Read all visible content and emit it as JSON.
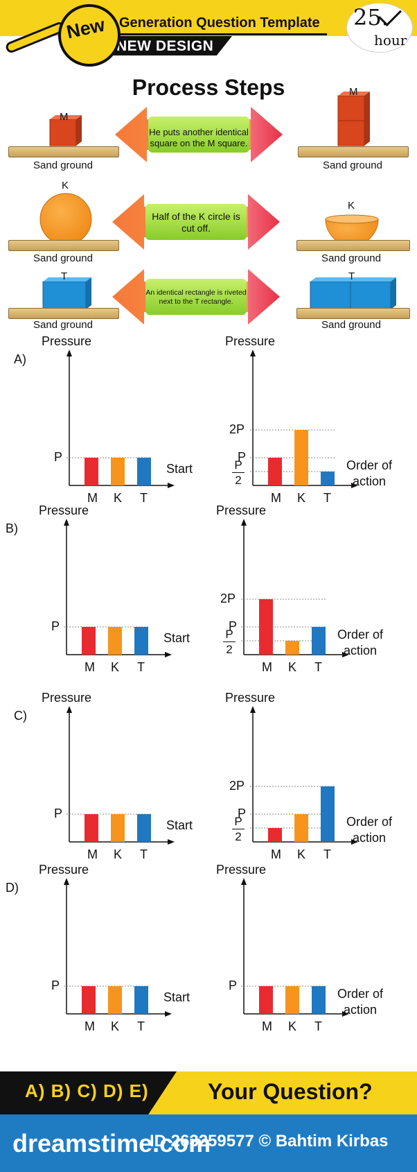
{
  "header": {
    "badge": "New",
    "title": "Generation Question Template",
    "subtitle": "NEW DESIGN",
    "clock_number": "25.",
    "clock_unit": "hour"
  },
  "process": {
    "title": "Process Steps",
    "ground_label": "Sand ground",
    "steps": [
      {
        "label_before": "M",
        "label_after": "M",
        "text": "He puts another identical square on the M square."
      },
      {
        "label_before": "K",
        "label_after": "K",
        "text": "Half of the K circle is cut off."
      },
      {
        "label_before": "T",
        "label_after": "T",
        "text": "An identical rectangle is riveted next to the T rectangle."
      }
    ]
  },
  "colors": {
    "M": "#e82b2f",
    "K": "#f7941d",
    "T": "#1f78c1"
  },
  "chart_data": {
    "type": "bar",
    "categories": [
      "M",
      "K",
      "T"
    ],
    "y_ticks": [
      "P/2",
      "P",
      "2P"
    ],
    "left_ylabel": "Pressure",
    "left_xlabel": "Start",
    "right_ylabel": "Pressure",
    "right_xlabel": "Order of action",
    "options": [
      {
        "letter": "A)",
        "start": [
          1,
          1,
          1
        ],
        "after": [
          1,
          2,
          0.5
        ],
        "after_ticks": [
          "2P",
          "P",
          "P/2"
        ]
      },
      {
        "letter": "B)",
        "start": [
          1,
          1,
          1
        ],
        "after": [
          2,
          0.5,
          1
        ],
        "after_ticks": [
          "2P",
          "P",
          "P/2"
        ]
      },
      {
        "letter": "C)",
        "start": [
          1,
          1,
          1
        ],
        "after": [
          0.5,
          1,
          2
        ],
        "after_ticks": [
          "2P",
          "P",
          "P/2"
        ]
      },
      {
        "letter": "D)",
        "start": [
          1,
          1,
          1
        ],
        "after": [
          1,
          1,
          1
        ],
        "after_ticks": [
          "P"
        ]
      }
    ]
  },
  "footer": {
    "answers": "A) B) C) D) E)",
    "question": "Your Question?",
    "brand": "dreamstime.com",
    "id_text": "ID 263259577 © Bahtim Kirbas"
  }
}
